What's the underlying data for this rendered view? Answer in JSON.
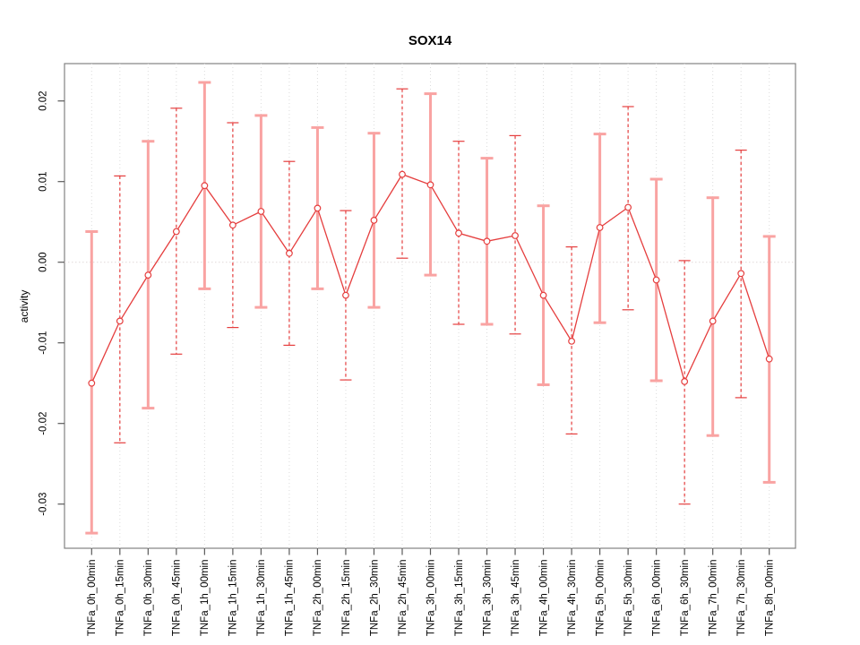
{
  "chart_data": {
    "type": "line",
    "title": "SOX14",
    "xlabel": "",
    "ylabel": "activity",
    "legend": "none",
    "grid": "vertical-dotted-per-category-plus-dotted-zero-line",
    "categories": [
      "TNFa_0h_00min",
      "TNFa_0h_15min",
      "TNFa_0h_30min",
      "TNFa_0h_45min",
      "TNFa_1h_00min",
      "TNFa_1h_15min",
      "TNFa_1h_30min",
      "TNFa_1h_45min",
      "TNFa_2h_00min",
      "TNFa_2h_15min",
      "TNFa_2h_30min",
      "TNFa_2h_45min",
      "TNFa_3h_00min",
      "TNFa_3h_15min",
      "TNFa_3h_30min",
      "TNFa_3h_45min",
      "TNFa_4h_00min",
      "TNFa_4h_30min",
      "TNFa_5h_00min",
      "TNFa_5h_30min",
      "TNFa_6h_00min",
      "TNFa_6h_30min",
      "TNFa_7h_00min",
      "TNFa_7h_30min",
      "TNFa_8h_00min"
    ],
    "values": [
      -0.015,
      -0.0073,
      -0.0016,
      0.0038,
      0.0095,
      0.0046,
      0.0063,
      0.0011,
      0.0067,
      -0.0041,
      0.0052,
      0.0109,
      0.0096,
      0.0036,
      0.0026,
      0.0033,
      -0.0041,
      -0.0098,
      0.0043,
      0.0068,
      -0.0022,
      -0.0148,
      -0.0073,
      -0.0014,
      -0.012
    ],
    "error_high": [
      0.0038,
      0.0107,
      0.015,
      0.0191,
      0.0223,
      0.0173,
      0.0182,
      0.0125,
      0.0167,
      0.0064,
      0.016,
      0.0215,
      0.0209,
      0.015,
      0.0129,
      0.0157,
      0.007,
      0.0019,
      0.0159,
      0.0193,
      0.0103,
      0.0002,
      0.008,
      0.0139,
      0.0032
    ],
    "error_low": [
      -0.0336,
      -0.0224,
      -0.0181,
      -0.0114,
      -0.0033,
      -0.0081,
      -0.0056,
      -0.0103,
      -0.0033,
      -0.0146,
      -0.0056,
      0.0005,
      -0.0016,
      -0.0077,
      -0.0077,
      -0.0089,
      -0.0152,
      -0.0213,
      -0.0075,
      -0.0059,
      -0.0147,
      -0.03,
      -0.0215,
      -0.0168,
      -0.0273
    ],
    "yticks": [
      0.02,
      0.01,
      0,
      -0.01,
      -0.02,
      -0.03
    ],
    "ytick_labels": [
      "0.02",
      "0.01",
      "0.00",
      "-0.01",
      "-0.02",
      "-0.03"
    ],
    "ylim": [
      -0.0355,
      0.0245
    ],
    "colors": {
      "series_red": "#e53e3e",
      "errorbar_pale": "#f9a3a2",
      "grid": "#dcdcdc",
      "zero_line": "#e4dddd",
      "box": "#828282",
      "tick": "#5a5a5a",
      "text": "#000000",
      "point_fill": "#ffffff"
    }
  }
}
